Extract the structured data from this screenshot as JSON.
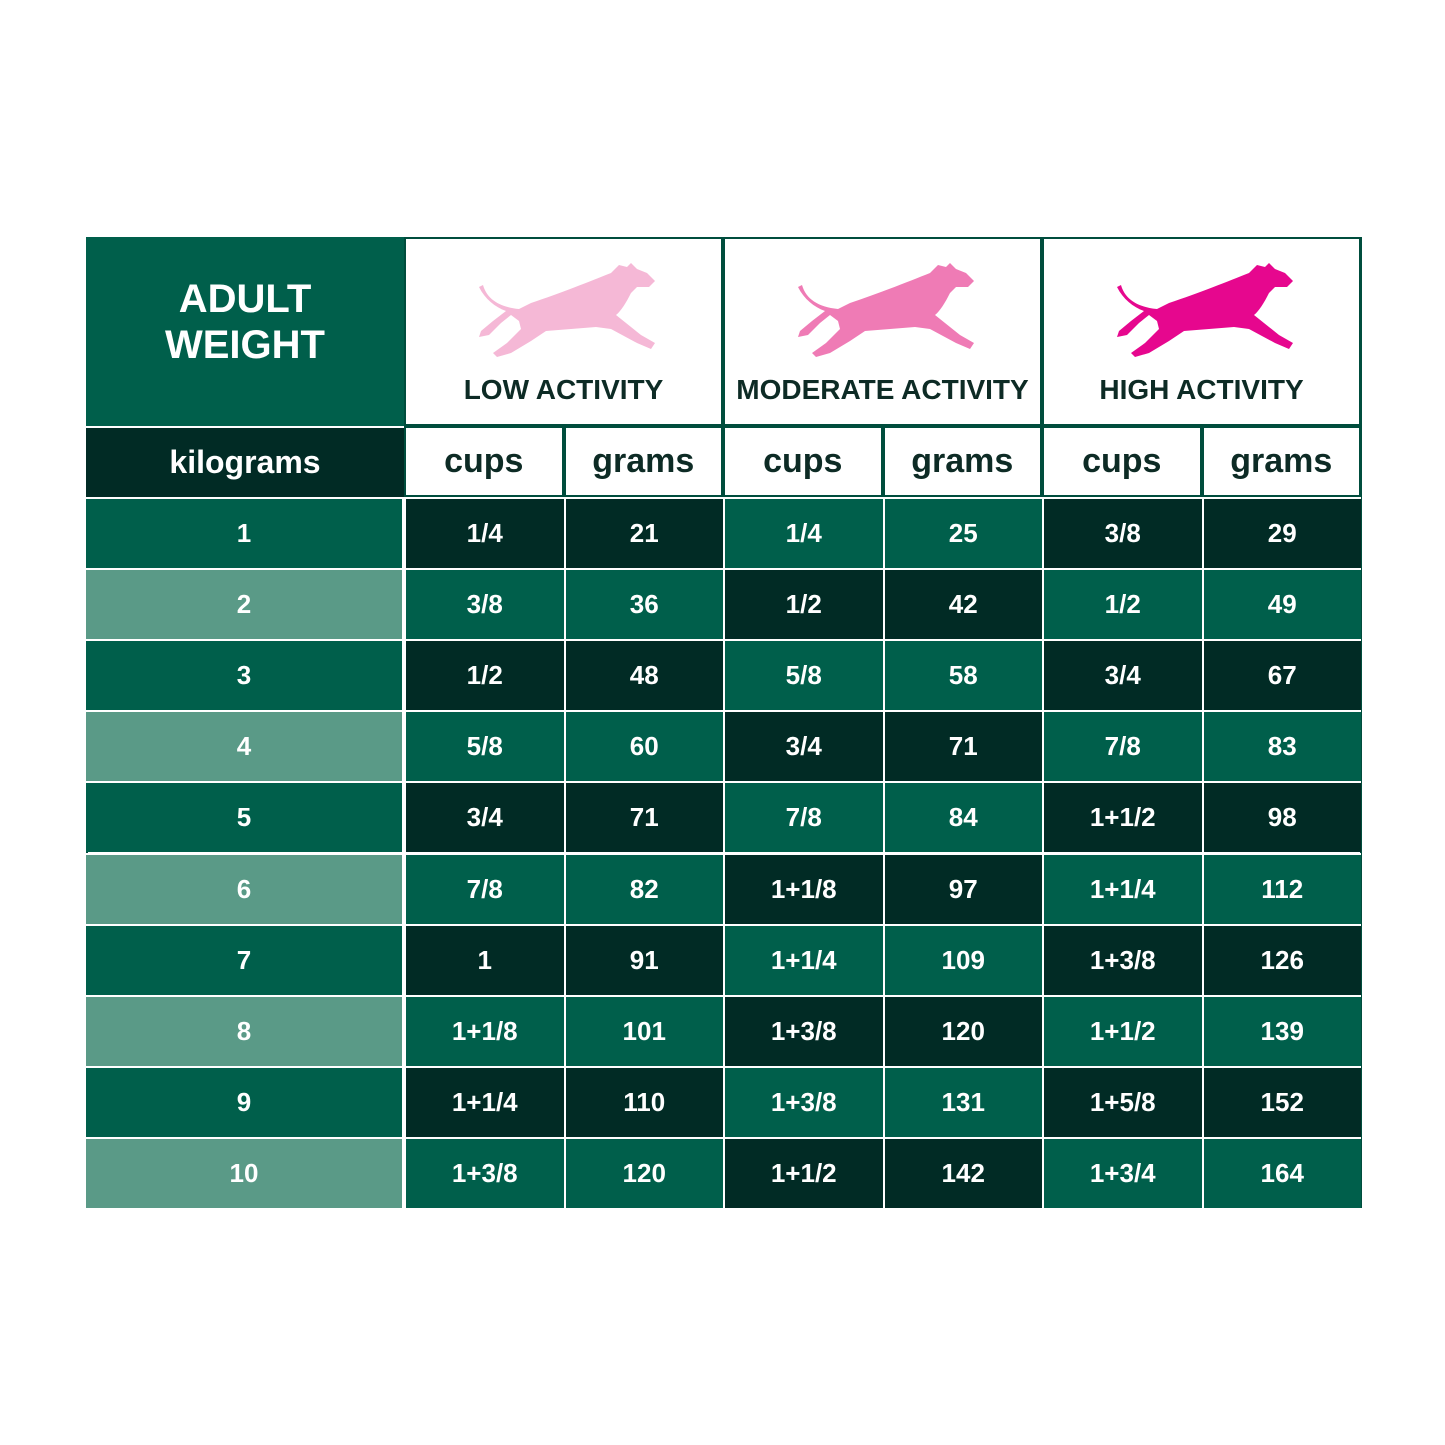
{
  "header": {
    "title_lines": [
      "ADULT",
      "WEIGHT"
    ],
    "unit": "kilograms"
  },
  "groups": [
    {
      "label": "LOW ACTIVITY",
      "color": "#f5b8d6",
      "columns": [
        "cups",
        "grams"
      ]
    },
    {
      "label": "MODERATE ACTIVITY",
      "color": "#ef7bb5",
      "columns": [
        "cups",
        "grams"
      ]
    },
    {
      "label": "HIGH ACTIVITY",
      "color": "#e6078e",
      "columns": [
        "cups",
        "grams"
      ]
    }
  ],
  "table": {
    "rows": [
      [
        1,
        "1/4",
        21,
        "1/4",
        25,
        "3/8",
        29
      ],
      [
        2,
        "3/8",
        36,
        "1/2",
        42,
        "1/2",
        49
      ],
      [
        3,
        "1/2",
        48,
        "5/8",
        58,
        "3/4",
        67
      ],
      [
        4,
        "5/8",
        60,
        "3/4",
        71,
        "7/8",
        83
      ],
      [
        5,
        "3/4",
        71,
        "7/8",
        84,
        "1+1/2",
        98
      ],
      [
        6,
        "7/8",
        82,
        "1+1/8",
        97,
        "1+1/4",
        112
      ],
      [
        7,
        "1",
        91,
        "1+1/4",
        109,
        "1+3/8",
        126
      ],
      [
        8,
        "1+1/8",
        101,
        "1+3/8",
        120,
        "1+1/2",
        139
      ],
      [
        9,
        "1+1/4",
        110,
        "1+3/8",
        131,
        "1+5/8",
        152
      ],
      [
        10,
        "1+3/8",
        120,
        "1+1/2",
        142,
        "1+3/4",
        164
      ]
    ]
  }
}
